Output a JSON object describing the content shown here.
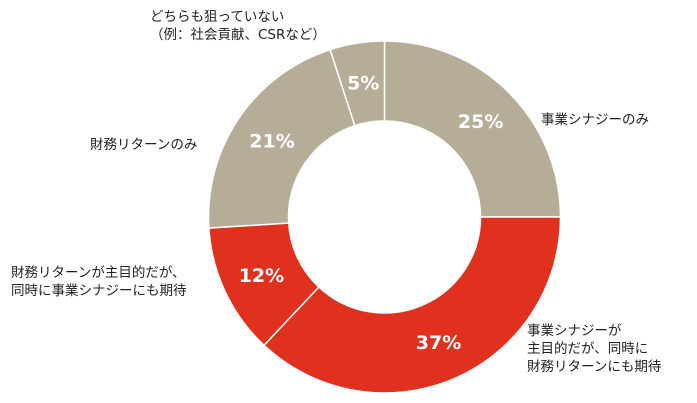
{
  "chart_data": {
    "type": "pie",
    "variant": "donut",
    "start": "top",
    "direction": "clockwise",
    "slices": [
      {
        "label": "事業シナジーのみ",
        "value": 25,
        "value_label": "25%",
        "color": "#b5ad98"
      },
      {
        "label": "事業シナジーが\n主目的だが、同時に\n財務リターンにも期待",
        "value": 37,
        "value_label": "37%",
        "color": "#e0301e"
      },
      {
        "label": "財務リターンが主目的だが、\n同時に事業シナジーにも期待",
        "value": 12,
        "value_label": "12%",
        "color": "#e0301e"
      },
      {
        "label": "財務リターンのみ",
        "value": 21,
        "value_label": "21%",
        "color": "#b5ad98"
      },
      {
        "label": "どちらも狙っていない\n（例：社会貢献、CSRなど）",
        "value": 5,
        "value_label": "5%",
        "color": "#b5ad98"
      }
    ]
  }
}
